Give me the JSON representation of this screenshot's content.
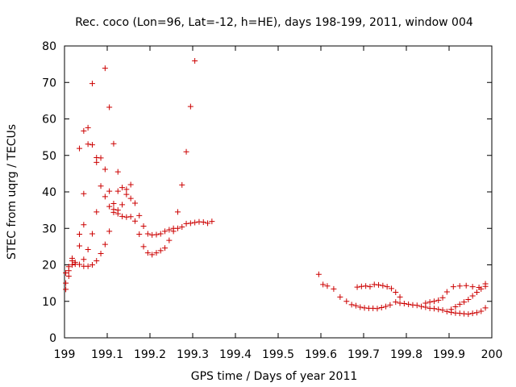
{
  "chart_data": {
    "type": "scatter",
    "title": "Rec. coco (Lon=96, Lat=-12, h=HE), days 198-199, 2011, window 004",
    "xlabel": "GPS time / Days of year 2011",
    "ylabel": "STEC from uqrg / TECUs",
    "xlim": [
      199,
      200
    ],
    "ylim": [
      0,
      80
    ],
    "x_ticks": [
      199,
      199.1,
      199.2,
      199.3,
      199.4,
      199.5,
      199.6,
      199.7,
      199.8,
      199.9,
      200
    ],
    "x_tick_labels": [
      "199",
      "199.1",
      "199.2",
      "199.3",
      "199.4",
      "199.5",
      "199.6",
      "199.7",
      "199.8",
      "199.9",
      "200"
    ],
    "y_ticks": [
      0,
      10,
      20,
      30,
      40,
      50,
      60,
      70,
      80
    ],
    "y_tick_labels": [
      "0",
      "10",
      "20",
      "30",
      "40",
      "50",
      "60",
      "70",
      "80"
    ],
    "grid": false,
    "marker": "+",
    "marker_color": "#cc0000",
    "points": [
      [
        199.003,
        13.3
      ],
      [
        199.003,
        15.0
      ],
      [
        199.003,
        17.8
      ],
      [
        199.01,
        16.9
      ],
      [
        199.01,
        18.4
      ],
      [
        199.01,
        19.5
      ],
      [
        199.018,
        20.0
      ],
      [
        199.018,
        21.1
      ],
      [
        199.018,
        21.8
      ],
      [
        199.025,
        20.2
      ],
      [
        199.025,
        20.7
      ],
      [
        199.035,
        20.1
      ],
      [
        199.035,
        25.2
      ],
      [
        199.035,
        28.4
      ],
      [
        199.035,
        51.9
      ],
      [
        199.045,
        19.6
      ],
      [
        199.045,
        21.5
      ],
      [
        199.045,
        31.0
      ],
      [
        199.045,
        39.5
      ],
      [
        199.045,
        56.7
      ],
      [
        199.055,
        19.6
      ],
      [
        199.055,
        24.2
      ],
      [
        199.055,
        53.1
      ],
      [
        199.055,
        57.6
      ],
      [
        199.065,
        20.0
      ],
      [
        199.065,
        28.5
      ],
      [
        199.065,
        52.9
      ],
      [
        199.065,
        69.7
      ],
      [
        199.075,
        21.1
      ],
      [
        199.075,
        34.5
      ],
      [
        199.075,
        48.1
      ],
      [
        199.075,
        49.4
      ],
      [
        199.085,
        23.1
      ],
      [
        199.085,
        41.6
      ],
      [
        199.085,
        49.3
      ],
      [
        199.095,
        25.6
      ],
      [
        199.095,
        38.7
      ],
      [
        199.095,
        46.2
      ],
      [
        199.095,
        73.9
      ],
      [
        199.105,
        29.2
      ],
      [
        199.105,
        36.0
      ],
      [
        199.105,
        40.2
      ],
      [
        199.105,
        63.2
      ],
      [
        199.115,
        34.4
      ],
      [
        199.115,
        35.2
      ],
      [
        199.115,
        36.8
      ],
      [
        199.115,
        53.2
      ],
      [
        199.125,
        34.0
      ],
      [
        199.125,
        35.0
      ],
      [
        199.125,
        40.2
      ],
      [
        199.125,
        45.5
      ],
      [
        199.135,
        33.3
      ],
      [
        199.135,
        36.5
      ],
      [
        199.135,
        41.2
      ],
      [
        199.145,
        33.1
      ],
      [
        199.145,
        39.3
      ],
      [
        199.145,
        40.7
      ],
      [
        199.155,
        33.2
      ],
      [
        199.155,
        38.2
      ],
      [
        199.155,
        42.0
      ],
      [
        199.165,
        32.0
      ],
      [
        199.165,
        36.9
      ],
      [
        199.175,
        28.4
      ],
      [
        199.175,
        33.5
      ],
      [
        199.185,
        25.0
      ],
      [
        199.185,
        30.6
      ],
      [
        199.195,
        23.3
      ],
      [
        199.195,
        28.5
      ],
      [
        199.205,
        22.8
      ],
      [
        199.205,
        28.2
      ],
      [
        199.215,
        23.3
      ],
      [
        199.215,
        28.3
      ],
      [
        199.225,
        23.9
      ],
      [
        199.225,
        28.5
      ],
      [
        199.235,
        24.6
      ],
      [
        199.235,
        29.2
      ],
      [
        199.245,
        26.7
      ],
      [
        199.245,
        29.6
      ],
      [
        199.255,
        29.2
      ],
      [
        199.255,
        30.0
      ],
      [
        199.265,
        30.0
      ],
      [
        199.265,
        34.5
      ],
      [
        199.275,
        30.4
      ],
      [
        199.275,
        41.9
      ],
      [
        199.285,
        31.3
      ],
      [
        199.285,
        51.0
      ],
      [
        199.295,
        31.4
      ],
      [
        199.295,
        63.4
      ],
      [
        199.305,
        31.6
      ],
      [
        199.305,
        75.9
      ],
      [
        199.315,
        31.8
      ],
      [
        199.325,
        31.7
      ],
      [
        199.335,
        31.4
      ],
      [
        199.345,
        31.9
      ],
      [
        199.595,
        17.4
      ],
      [
        199.605,
        14.6
      ],
      [
        199.615,
        14.2
      ],
      [
        199.63,
        13.4
      ],
      [
        199.645,
        11.2
      ],
      [
        199.66,
        10.0
      ],
      [
        199.672,
        9.1
      ],
      [
        199.682,
        8.8
      ],
      [
        199.692,
        8.4
      ],
      [
        199.702,
        8.2
      ],
      [
        199.712,
        8.1
      ],
      [
        199.722,
        8.1
      ],
      [
        199.732,
        8.0
      ],
      [
        199.742,
        8.3
      ],
      [
        199.752,
        8.6
      ],
      [
        199.762,
        9.0
      ],
      [
        199.685,
        13.9
      ],
      [
        199.695,
        14.1
      ],
      [
        199.705,
        14.2
      ],
      [
        199.715,
        14.0
      ],
      [
        199.725,
        14.6
      ],
      [
        199.735,
        14.5
      ],
      [
        199.745,
        14.3
      ],
      [
        199.755,
        14.0
      ],
      [
        199.765,
        13.5
      ],
      [
        199.775,
        12.5
      ],
      [
        199.785,
        11.2
      ],
      [
        199.775,
        9.8
      ],
      [
        199.785,
        9.5
      ],
      [
        199.795,
        9.4
      ],
      [
        199.805,
        9.2
      ],
      [
        199.815,
        9.0
      ],
      [
        199.825,
        8.9
      ],
      [
        199.835,
        8.6
      ],
      [
        199.845,
        8.4
      ],
      [
        199.855,
        8.1
      ],
      [
        199.865,
        8.0
      ],
      [
        199.875,
        7.8
      ],
      [
        199.885,
        7.6
      ],
      [
        199.845,
        9.5
      ],
      [
        199.855,
        9.8
      ],
      [
        199.865,
        10.0
      ],
      [
        199.875,
        10.3
      ],
      [
        199.885,
        11.0
      ],
      [
        199.895,
        12.6
      ],
      [
        199.895,
        7.2
      ],
      [
        199.905,
        7.0
      ],
      [
        199.915,
        6.8
      ],
      [
        199.925,
        6.7
      ],
      [
        199.935,
        6.6
      ],
      [
        199.945,
        6.5
      ],
      [
        199.955,
        6.7
      ],
      [
        199.965,
        6.9
      ],
      [
        199.975,
        7.3
      ],
      [
        199.985,
        8.2
      ],
      [
        199.905,
        7.8
      ],
      [
        199.915,
        8.5
      ],
      [
        199.925,
        9.2
      ],
      [
        199.935,
        9.8
      ],
      [
        199.945,
        10.5
      ],
      [
        199.955,
        11.5
      ],
      [
        199.965,
        12.5
      ],
      [
        199.975,
        13.4
      ],
      [
        199.985,
        14.1
      ],
      [
        199.91,
        14.0
      ],
      [
        199.925,
        14.2
      ],
      [
        199.94,
        14.3
      ],
      [
        199.955,
        14.0
      ],
      [
        199.97,
        13.8
      ],
      [
        199.985,
        14.8
      ]
    ]
  }
}
